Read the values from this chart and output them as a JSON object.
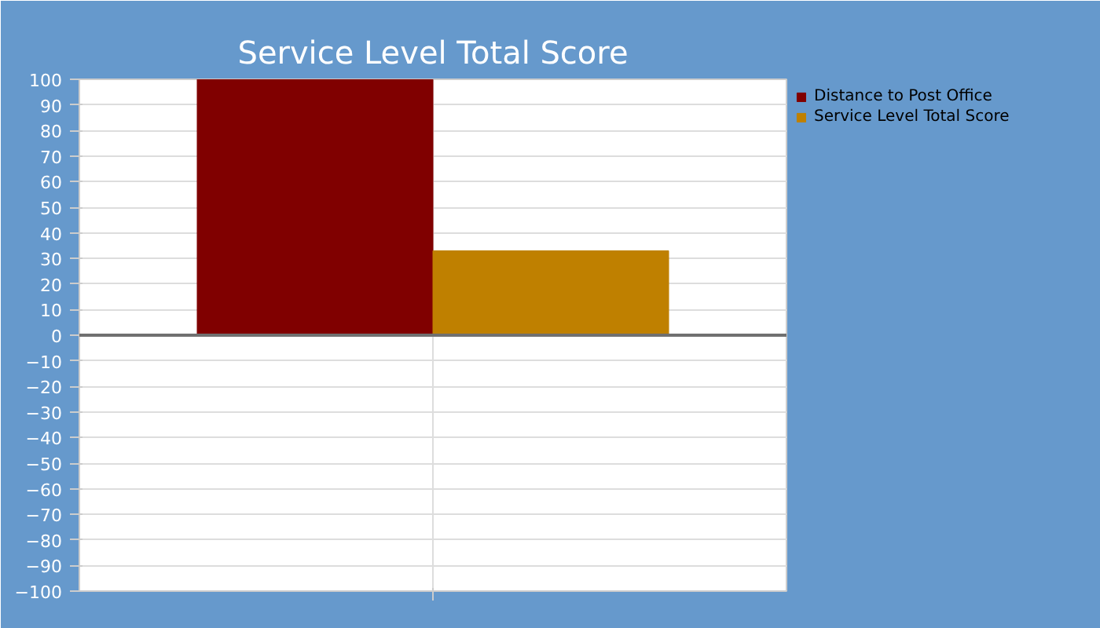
{
  "chart_data": {
    "type": "bar",
    "title": "Service Level Total Score",
    "categories": [
      null
    ],
    "series": [
      {
        "name": "Distance to Post Office",
        "color": "#800000",
        "values": [
          100
        ]
      },
      {
        "name": "Service Level Total Score",
        "color": "#bf8000",
        "values": [
          33
        ]
      }
    ],
    "ylim": [
      -100,
      100
    ],
    "yticks": [
      -100,
      -90,
      -80,
      -70,
      -60,
      -50,
      -40,
      -30,
      -20,
      -10,
      0,
      10,
      20,
      30,
      40,
      50,
      60,
      70,
      80,
      90,
      100
    ],
    "grid": true,
    "legend": "top right"
  }
}
